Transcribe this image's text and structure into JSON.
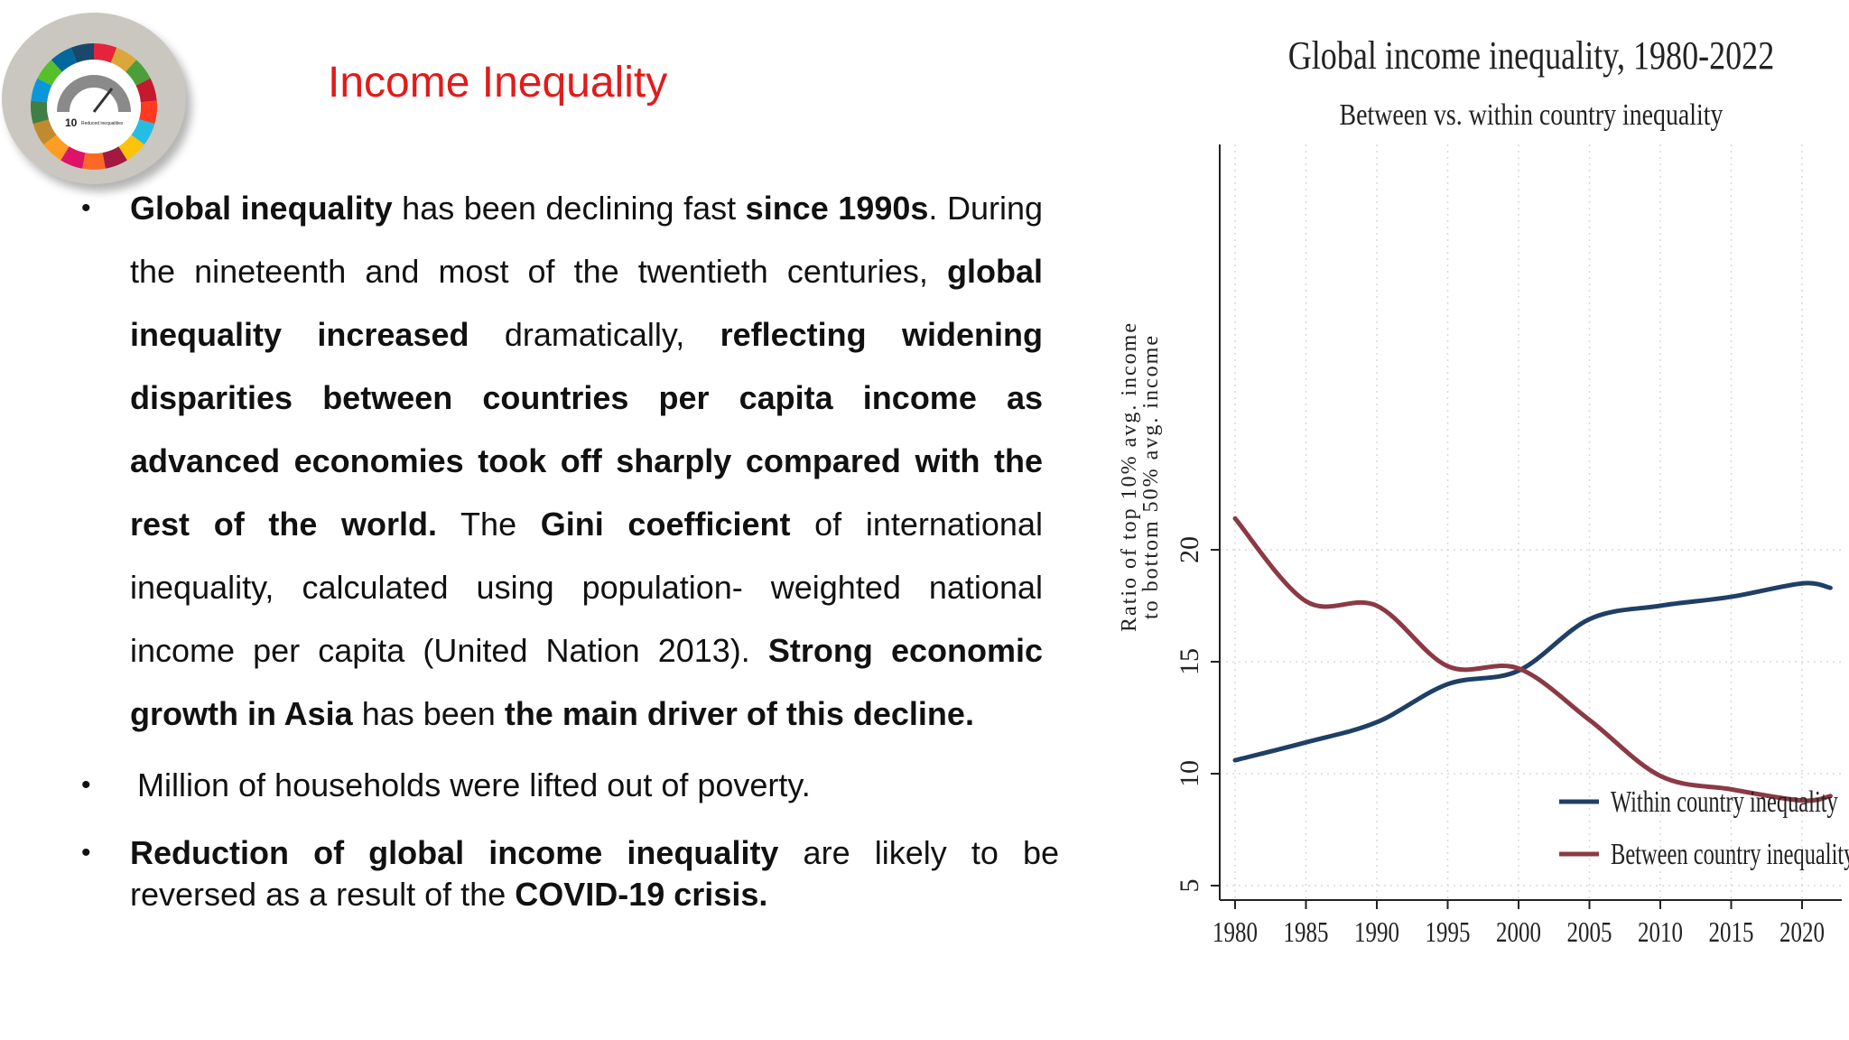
{
  "slide": {
    "title": "Income Inequality",
    "logo": {
      "number": "10",
      "caption": "Reduced inequalities",
      "colors": [
        "#e5243b",
        "#dda63a",
        "#4c9f38",
        "#c5192d",
        "#ff3a21",
        "#26bde2",
        "#fcc30b",
        "#a21942",
        "#fd6925",
        "#dd1367",
        "#fd9d24",
        "#bf8b2e",
        "#3f7e44",
        "#0a97d9",
        "#56c02b",
        "#00689d",
        "#19486a"
      ]
    },
    "bullets": [
      {
        "segments": [
          {
            "text": "Global inequality",
            "bold": true
          },
          {
            "text": " has  been declining fast ",
            "bold": false
          },
          {
            "text": "since 1990s",
            "bold": true
          },
          {
            "text": ". During the nineteenth and most of the twentieth centuries, ",
            "bold": false
          },
          {
            "text": "global inequality increased",
            "bold": true
          },
          {
            "text": " dramatically, ",
            "bold": false
          },
          {
            "text": "reflecting widening disparities between countries per capita income as advanced economies took off sharply compared with the rest of the world.",
            "bold": true
          },
          {
            "text": " The ",
            "bold": false
          },
          {
            "text": "Gini coefficient",
            "bold": true
          },
          {
            "text": " of international inequality, calculated using population- weighted national income per capita (United Nation 2013). ",
            "bold": false
          },
          {
            "text": "Strong economic growth in Asia",
            "bold": true
          },
          {
            "text": " has been ",
            "bold": false
          },
          {
            "text": "the main driver of this decline.",
            "bold": true
          }
        ]
      },
      {
        "segments": [
          {
            "text": "Million of households were lifted out of poverty.",
            "bold": false
          }
        ]
      },
      {
        "segments": [
          {
            "text": "Reduction of global income inequality",
            "bold": true
          },
          {
            "text": " are likely to be reversed as a result of the ",
            "bold": false
          },
          {
            "text": "COVID-19 crisis.",
            "bold": true
          }
        ]
      }
    ],
    "bullet_symbol": "•"
  },
  "chart_data": {
    "type": "line",
    "title": "Global income inequality, 1980-2022",
    "subtitle": "Between vs. within country inequality",
    "ylabel_line1": "Ratio of top 10% avg. income",
    "ylabel_line2": "to bottom 50% avg. income",
    "xlim": [
      1980,
      2022
    ],
    "ylim": [
      5,
      21.5
    ],
    "xticks": [
      1980,
      1985,
      1990,
      1995,
      2000,
      2005,
      2010,
      2015,
      2020
    ],
    "yticks": [
      5,
      10,
      15,
      20
    ],
    "grid": true,
    "legend_position": "bottom-right",
    "series": [
      {
        "name": "Within country inequality",
        "color": "#1f3f66",
        "x": [
          1980,
          1985,
          1990,
          1995,
          2000,
          2005,
          2010,
          2015,
          2020,
          2022
        ],
        "y": [
          10.6,
          11.4,
          12.3,
          14.0,
          14.6,
          16.9,
          17.5,
          17.9,
          18.5,
          18.3
        ]
      },
      {
        "name": "Between country inequality",
        "color": "#8b3a45",
        "x": [
          1980,
          1985,
          1990,
          1995,
          2000,
          2005,
          2010,
          2015,
          2020,
          2022
        ],
        "y": [
          21.4,
          17.7,
          17.5,
          14.8,
          14.7,
          12.4,
          9.9,
          9.3,
          8.8,
          9.0
        ]
      }
    ]
  }
}
